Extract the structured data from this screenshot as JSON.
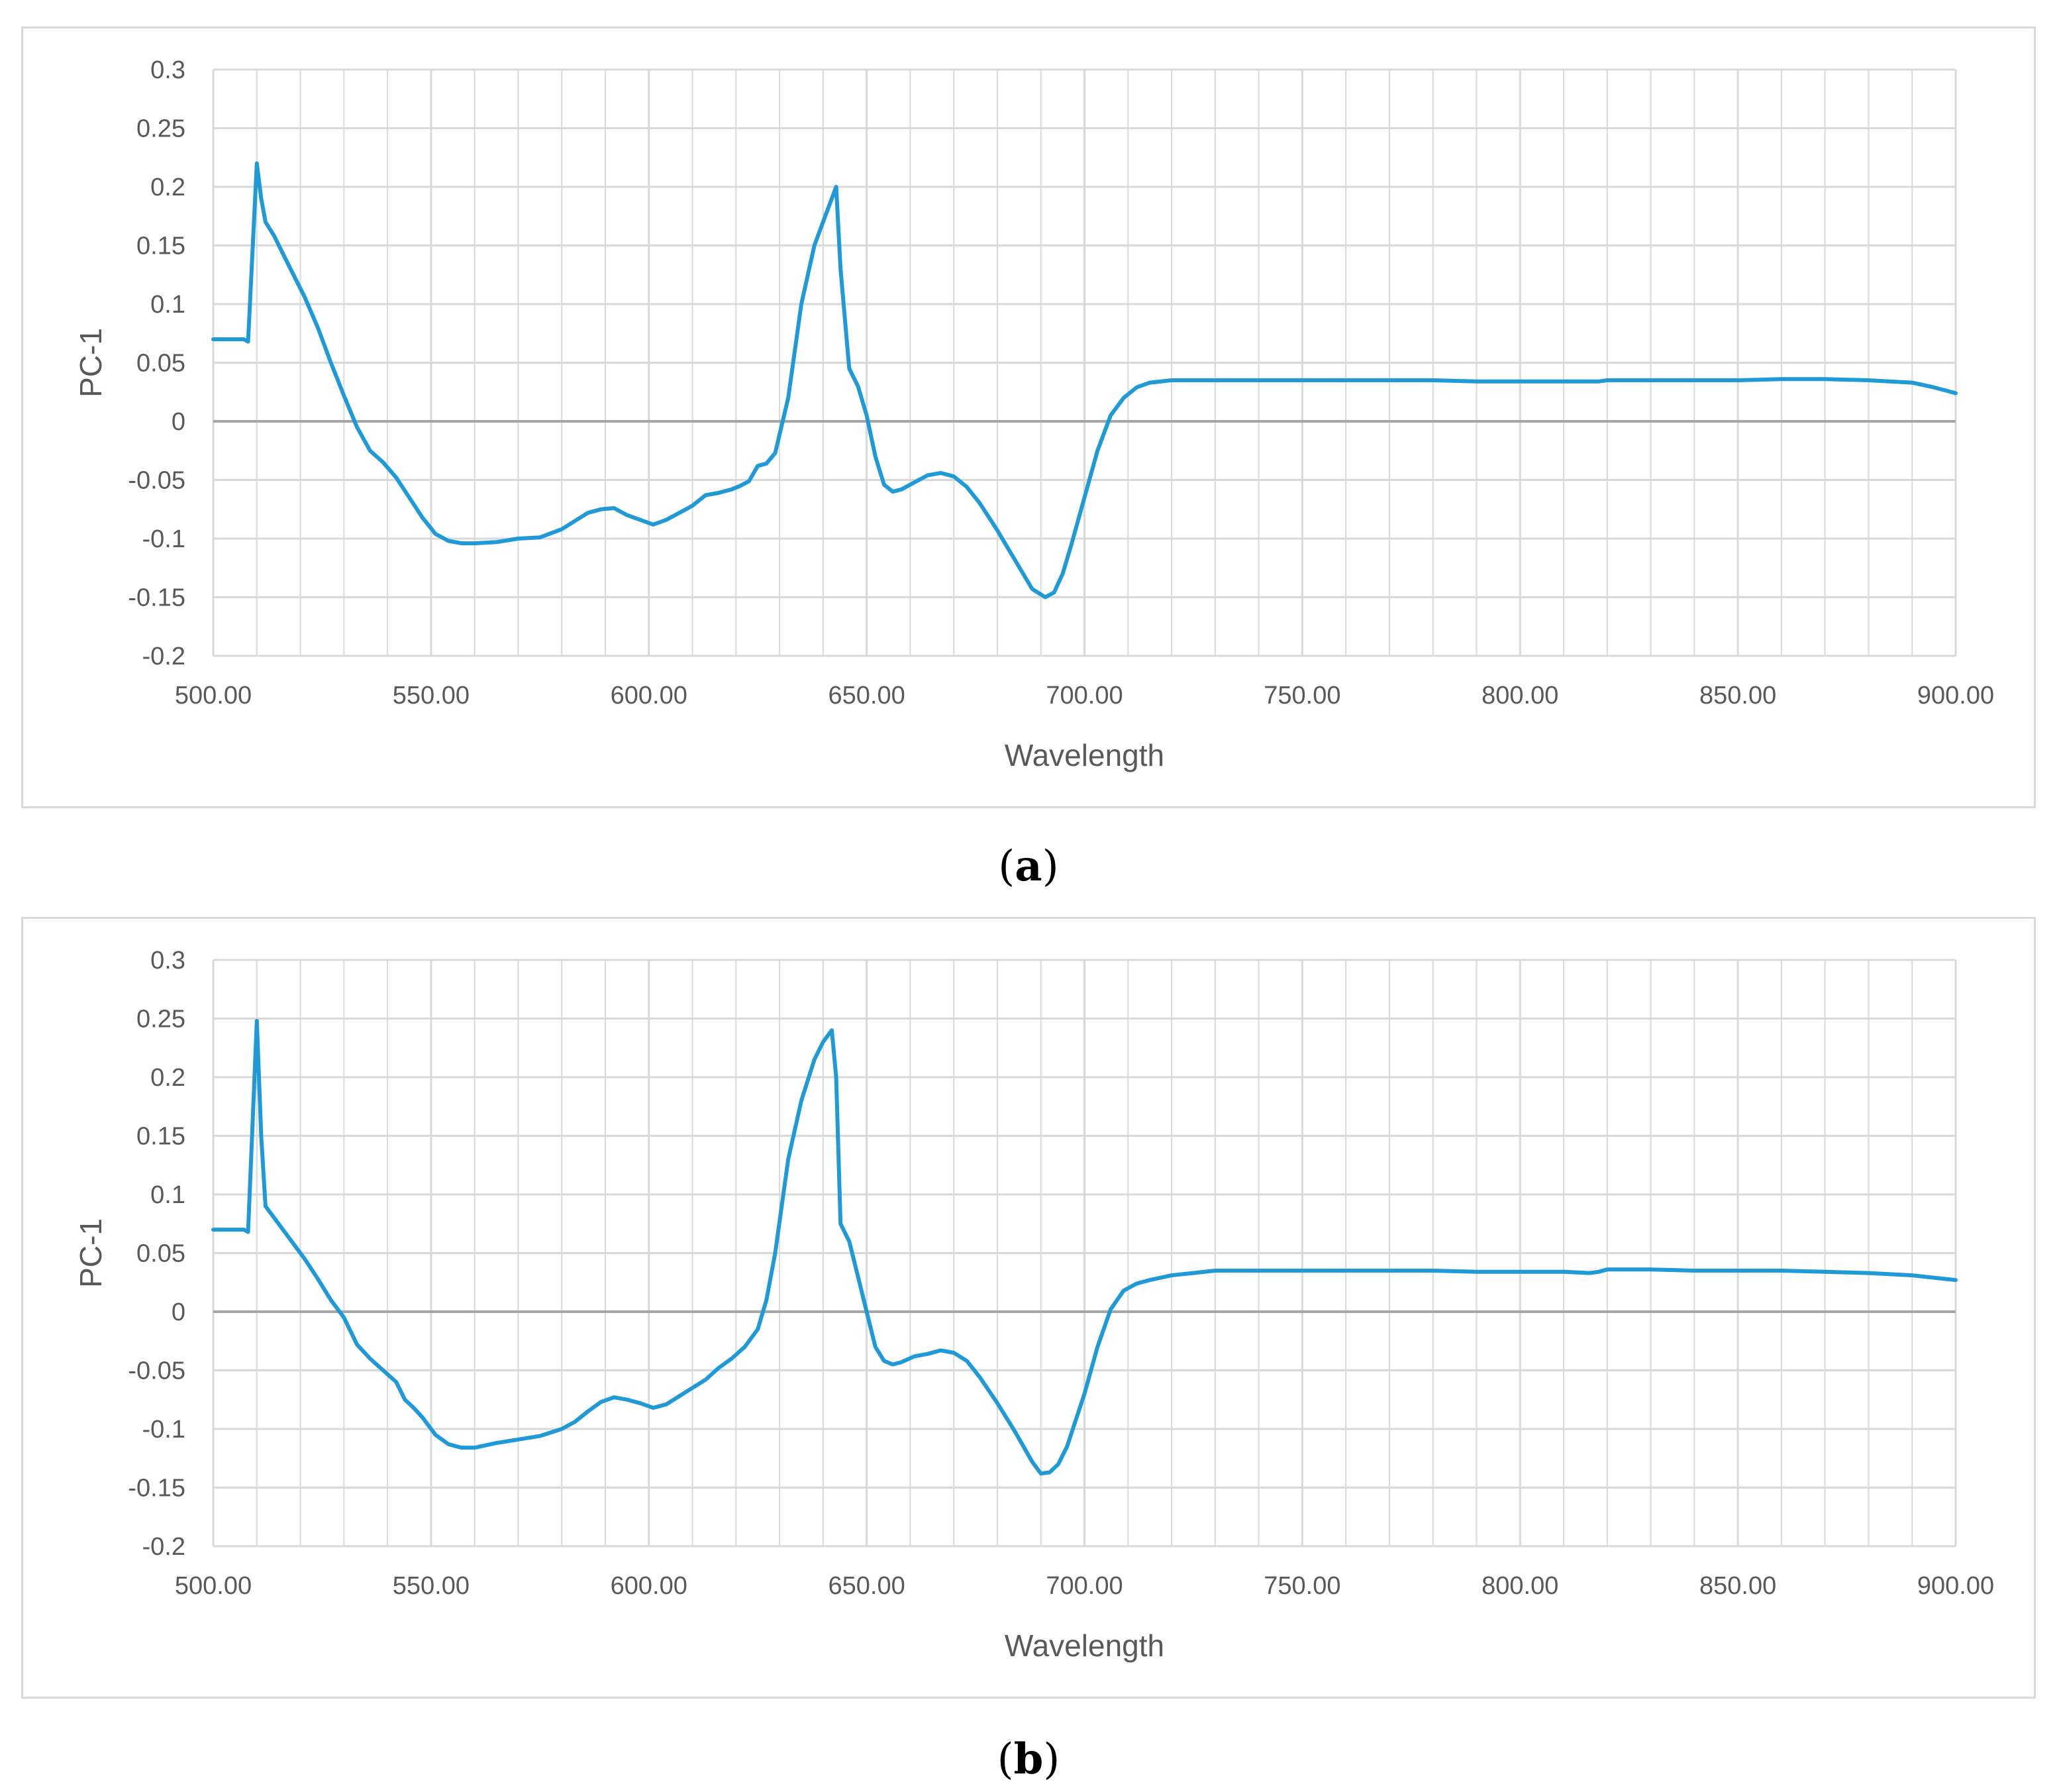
{
  "line_color": "#1f9ad6",
  "grid_color": "#d9d9d9",
  "zero_line_color": "#a6a6a6",
  "chart_data": [
    {
      "id": "a",
      "caption_letter": "a",
      "type": "line",
      "xlabel": "Wavelength",
      "ylabel": "PC-1",
      "xlim": [
        500,
        900
      ],
      "ylim": [
        -0.2,
        0.3
      ],
      "x_major_step": 50,
      "x_minor_step": 10,
      "y_step": 0.05,
      "grid": true,
      "legend": "none",
      "x_tick_labels": [
        "500.00",
        "550.00",
        "600.00",
        "650.00",
        "700.00",
        "750.00",
        "800.00",
        "850.00",
        "900.00"
      ],
      "y_tick_labels": [
        "-0.2",
        "-0.15",
        "-0.1",
        "-0.05",
        "0",
        "0.05",
        "0.1",
        "0.15",
        "0.2",
        "0.25",
        "0.3"
      ],
      "series": [
        {
          "x": [
            500,
            505,
            507,
            508,
            510,
            511,
            512,
            514,
            516,
            518,
            521,
            524,
            527,
            530,
            533,
            536,
            539,
            542,
            545,
            548,
            551,
            554,
            557,
            560,
            565,
            570,
            575,
            580,
            583,
            586,
            589,
            592,
            595,
            598,
            601,
            604,
            607,
            610,
            613,
            616,
            619,
            621,
            623,
            625,
            627,
            629,
            632,
            635,
            638,
            640,
            641,
            642,
            643,
            644,
            646,
            648,
            650,
            652,
            654,
            656,
            658,
            661,
            664,
            667,
            670,
            673,
            676,
            680,
            684,
            688,
            691,
            693,
            695,
            697,
            700,
            703,
            706,
            709,
            712,
            715,
            720,
            725,
            730,
            740,
            750,
            760,
            770,
            780,
            790,
            800,
            810,
            815,
            818,
            820,
            830,
            840,
            850,
            860,
            870,
            880,
            890,
            895,
            900
          ],
          "y": [
            0.07,
            0.07,
            0.07,
            0.068,
            0.22,
            0.19,
            0.17,
            0.158,
            0.143,
            0.128,
            0.106,
            0.08,
            0.05,
            0.022,
            -0.005,
            -0.025,
            -0.035,
            -0.048,
            -0.065,
            -0.082,
            -0.096,
            -0.102,
            -0.104,
            -0.104,
            -0.103,
            -0.1,
            -0.099,
            -0.092,
            -0.085,
            -0.078,
            -0.075,
            -0.074,
            -0.08,
            -0.084,
            -0.088,
            -0.084,
            -0.078,
            -0.072,
            -0.063,
            -0.061,
            -0.058,
            -0.055,
            -0.051,
            -0.038,
            -0.036,
            -0.027,
            0.02,
            0.1,
            0.15,
            0.17,
            0.18,
            0.19,
            0.2,
            0.13,
            0.045,
            0.03,
            0.005,
            -0.03,
            -0.054,
            -0.06,
            -0.058,
            -0.052,
            -0.046,
            -0.044,
            -0.047,
            -0.056,
            -0.07,
            -0.093,
            -0.118,
            -0.143,
            -0.15,
            -0.146,
            -0.13,
            -0.105,
            -0.065,
            -0.025,
            0.005,
            0.02,
            0.029,
            0.033,
            0.035,
            0.035,
            0.035,
            0.035,
            0.035,
            0.035,
            0.035,
            0.035,
            0.034,
            0.034,
            0.034,
            0.034,
            0.034,
            0.035,
            0.035,
            0.035,
            0.035,
            0.036,
            0.036,
            0.035,
            0.033,
            0.029,
            0.024
          ]
        }
      ]
    },
    {
      "id": "b",
      "caption_letter": "b",
      "type": "line",
      "xlabel": "Wavelength",
      "ylabel": "PC-1",
      "xlim": [
        500,
        900
      ],
      "ylim": [
        -0.2,
        0.3
      ],
      "x_major_step": 50,
      "x_minor_step": 10,
      "y_step": 0.05,
      "grid": true,
      "legend": "none",
      "x_tick_labels": [
        "500.00",
        "550.00",
        "600.00",
        "650.00",
        "700.00",
        "750.00",
        "800.00",
        "850.00",
        "900.00"
      ],
      "y_tick_labels": [
        "-0.2",
        "-0.15",
        "-0.1",
        "-0.05",
        "0",
        "0.05",
        "0.1",
        "0.15",
        "0.2",
        "0.25",
        "0.3"
      ],
      "series": [
        {
          "x": [
            500,
            505,
            507,
            508,
            510,
            511,
            512,
            514,
            516,
            518,
            521,
            524,
            527,
            530,
            533,
            536,
            539,
            542,
            544,
            546,
            548,
            551,
            554,
            557,
            560,
            565,
            570,
            575,
            580,
            583,
            586,
            589,
            592,
            595,
            598,
            601,
            604,
            607,
            610,
            613,
            616,
            619,
            622,
            625,
            627,
            629,
            632,
            635,
            638,
            640,
            641,
            642,
            643,
            644,
            646,
            648,
            650,
            652,
            654,
            656,
            658,
            661,
            664,
            667,
            670,
            673,
            676,
            680,
            684,
            688,
            690,
            692,
            694,
            696,
            700,
            703,
            706,
            709,
            712,
            715,
            720,
            725,
            730,
            740,
            750,
            760,
            770,
            780,
            790,
            800,
            810,
            816,
            818,
            820,
            830,
            840,
            850,
            860,
            870,
            880,
            890,
            895,
            900
          ],
          "y": [
            0.07,
            0.07,
            0.07,
            0.068,
            0.248,
            0.15,
            0.09,
            0.08,
            0.07,
            0.06,
            0.045,
            0.028,
            0.01,
            -0.005,
            -0.028,
            -0.04,
            -0.05,
            -0.06,
            -0.075,
            -0.082,
            -0.09,
            -0.105,
            -0.113,
            -0.116,
            -0.116,
            -0.112,
            -0.109,
            -0.106,
            -0.1,
            -0.094,
            -0.085,
            -0.077,
            -0.073,
            -0.075,
            -0.078,
            -0.082,
            -0.079,
            -0.072,
            -0.065,
            -0.058,
            -0.048,
            -0.04,
            -0.03,
            -0.015,
            0.01,
            0.05,
            0.13,
            0.18,
            0.215,
            0.23,
            0.235,
            0.24,
            0.2,
            0.075,
            0.06,
            0.03,
            0.0,
            -0.03,
            -0.042,
            -0.045,
            -0.043,
            -0.038,
            -0.036,
            -0.033,
            -0.035,
            -0.042,
            -0.056,
            -0.078,
            -0.102,
            -0.128,
            -0.138,
            -0.137,
            -0.13,
            -0.115,
            -0.07,
            -0.03,
            0.002,
            0.018,
            0.024,
            0.027,
            0.031,
            0.033,
            0.035,
            0.035,
            0.035,
            0.035,
            0.035,
            0.035,
            0.034,
            0.034,
            0.034,
            0.033,
            0.034,
            0.036,
            0.036,
            0.035,
            0.035,
            0.035,
            0.034,
            0.033,
            0.031,
            0.029,
            0.027
          ]
        }
      ]
    }
  ]
}
